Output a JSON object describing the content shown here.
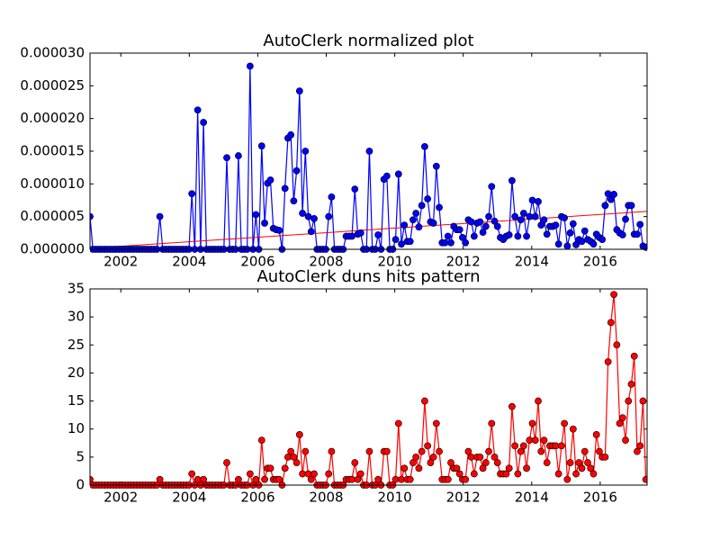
{
  "chart_data": [
    {
      "type": "line",
      "title": "AutoClerk normalized plot",
      "x": [
        2001.1,
        2001.185,
        2001.27,
        2001.355,
        2001.44,
        2001.525,
        2001.61,
        2001.695,
        2001.78,
        2001.865,
        2001.95,
        2002.035,
        2002.12,
        2002.205,
        2002.29,
        2002.375,
        2002.46,
        2002.545,
        2002.63,
        2002.715,
        2002.8,
        2002.885,
        2002.97,
        2003.055,
        2003.14,
        2003.225,
        2003.31,
        2003.395,
        2003.48,
        2003.565,
        2003.65,
        2003.735,
        2003.82,
        2003.905,
        2003.99,
        2004.075,
        2004.16,
        2004.245,
        2004.33,
        2004.415,
        2004.5,
        2004.585,
        2004.67,
        2004.755,
        2004.84,
        2004.925,
        2005.01,
        2005.095,
        2005.18,
        2005.265,
        2005.35,
        2005.435,
        2005.52,
        2005.605,
        2005.69,
        2005.775,
        2005.86,
        2005.945,
        2006.03,
        2006.115,
        2006.2,
        2006.285,
        2006.37,
        2006.455,
        2006.54,
        2006.625,
        2006.71,
        2006.795,
        2006.88,
        2006.965,
        2007.05,
        2007.135,
        2007.22,
        2007.305,
        2007.39,
        2007.475,
        2007.56,
        2007.645,
        2007.73,
        2007.815,
        2007.9,
        2007.985,
        2008.07,
        2008.155,
        2008.24,
        2008.325,
        2008.41,
        2008.495,
        2008.58,
        2008.665,
        2008.75,
        2008.835,
        2008.92,
        2009.005,
        2009.09,
        2009.175,
        2009.26,
        2009.345,
        2009.43,
        2009.515,
        2009.6,
        2009.685,
        2009.77,
        2009.855,
        2009.94,
        2010.025,
        2010.11,
        2010.195,
        2010.28,
        2010.365,
        2010.45,
        2010.535,
        2010.62,
        2010.705,
        2010.79,
        2010.875,
        2010.96,
        2011.045,
        2011.13,
        2011.215,
        2011.3,
        2011.385,
        2011.47,
        2011.555,
        2011.64,
        2011.725,
        2011.81,
        2011.895,
        2011.98,
        2012.065,
        2012.15,
        2012.235,
        2012.32,
        2012.405,
        2012.49,
        2012.575,
        2012.66,
        2012.745,
        2012.83,
        2012.915,
        2013,
        2013.085,
        2013.17,
        2013.255,
        2013.34,
        2013.425,
        2013.51,
        2013.595,
        2013.68,
        2013.765,
        2013.85,
        2013.935,
        2014.02,
        2014.105,
        2014.19,
        2014.275,
        2014.36,
        2014.445,
        2014.53,
        2014.615,
        2014.7,
        2014.785,
        2014.87,
        2014.955,
        2015.04,
        2015.125,
        2015.21,
        2015.295,
        2015.38,
        2015.465,
        2015.55,
        2015.635,
        2015.72,
        2015.805,
        2015.89,
        2015.975,
        2016.06,
        2016.145,
        2016.23,
        2016.315,
        2016.4,
        2016.485,
        2016.57,
        2016.655,
        2016.74,
        2016.825,
        2016.91,
        2016.995,
        2017.08,
        2017.165,
        2017.25,
        2017.335
      ],
      "series": [
        {
          "color": "#0000ff",
          "values": [
            5e-06,
            0,
            0,
            0,
            0,
            0,
            0,
            0,
            0,
            0,
            0,
            0,
            0,
            0,
            0,
            0,
            0,
            0,
            0,
            0,
            0,
            0,
            0,
            0,
            5e-06,
            0,
            0,
            0,
            0,
            0,
            0,
            0,
            0,
            0,
            0,
            8.5e-06,
            0,
            2.13e-05,
            0,
            1.94e-05,
            0,
            0,
            0,
            0,
            0,
            0,
            0,
            1.4e-05,
            0,
            0,
            0,
            1.43e-05,
            0,
            0,
            0,
            2.8e-05,
            0,
            5.3e-06,
            0,
            1.58e-05,
            4e-06,
            1.01e-05,
            1.06e-05,
            3.2e-06,
            3e-06,
            2.9e-06,
            0,
            9.3e-06,
            1.7e-05,
            1.75e-05,
            7.4e-06,
            1.2e-05,
            2.42e-05,
            5.5e-06,
            1.5e-05,
            5e-06,
            2.7e-06,
            4.7e-06,
            0,
            0,
            0,
            0,
            5e-06,
            8e-06,
            0,
            0,
            0,
            0,
            2e-06,
            2e-06,
            2e-06,
            9.2e-06,
            2.3e-06,
            2.5e-06,
            0,
            0,
            1.5e-05,
            0,
            0,
            2.2e-06,
            0,
            1.07e-05,
            1.12e-05,
            0,
            0,
            1.5e-06,
            1.15e-05,
            8e-07,
            3.7e-06,
            1.2e-06,
            1.2e-06,
            4.5e-06,
            5.5e-06,
            3.4e-06,
            6.7e-06,
            1.57e-05,
            7.7e-06,
            4.2e-06,
            4e-06,
            1.27e-05,
            6.4e-06,
            1e-06,
            1e-06,
            2e-06,
            1e-06,
            3.5e-06,
            3e-06,
            3e-06,
            1.8e-06,
            1e-06,
            4.5e-06,
            4.2e-06,
            2e-06,
            4e-06,
            4.2e-06,
            2.6e-06,
            3.5e-06,
            5e-06,
            9.6e-06,
            4.3e-06,
            3.5e-06,
            1.8e-06,
            1.5e-06,
            2e-06,
            2.2e-06,
            1.05e-05,
            5e-06,
            2e-06,
            4.5e-06,
            5.5e-06,
            2e-06,
            5e-06,
            7.5e-06,
            5e-06,
            7.3e-06,
            3.7e-06,
            4.5e-06,
            2.3e-06,
            3.5e-06,
            3.5e-06,
            3.7e-06,
            8e-07,
            5e-06,
            4.8e-06,
            5e-07,
            2.5e-06,
            3.9e-06,
            7e-07,
            1.5e-06,
            1.2e-06,
            2.8e-06,
            1.5e-06,
            1.2e-06,
            8e-07,
            2.3e-06,
            1.8e-06,
            1.5e-06,
            6.7e-06,
            8.5e-06,
            7.6e-06,
            8.4e-06,
            3e-06,
            2.5e-06,
            2.2e-06,
            4.6e-06,
            6.7e-06,
            6.7e-06,
            2.3e-06,
            2.3e-06,
            3.8e-06,
            5e-07,
            3e-07
          ]
        }
      ],
      "fit": {
        "color": "#ff0000",
        "x": [
          2001.1,
          2017.37
        ],
        "values": [
          1.5e-07,
          5.8e-06
        ]
      },
      "xlim": [
        2001.1,
        2017.37
      ],
      "ylim": [
        0,
        3e-05
      ],
      "xticks": [
        2002,
        2004,
        2006,
        2008,
        2010,
        2012,
        2014,
        2016
      ],
      "yticks": [
        {
          "value": 0,
          "label": "0.000000"
        },
        {
          "value": 5e-06,
          "label": "0.000005"
        },
        {
          "value": 1e-05,
          "label": "0.000010"
        },
        {
          "value": 1.5e-05,
          "label": "0.000015"
        },
        {
          "value": 2e-05,
          "label": "0.000020"
        },
        {
          "value": 2.5e-05,
          "label": "0.000025"
        },
        {
          "value": 3e-05,
          "label": "0.000030"
        }
      ]
    },
    {
      "type": "line",
      "title": "AutoClerk duns hits pattern",
      "x": [
        2001.1,
        2001.185,
        2001.27,
        2001.355,
        2001.44,
        2001.525,
        2001.61,
        2001.695,
        2001.78,
        2001.865,
        2001.95,
        2002.035,
        2002.12,
        2002.205,
        2002.29,
        2002.375,
        2002.46,
        2002.545,
        2002.63,
        2002.715,
        2002.8,
        2002.885,
        2002.97,
        2003.055,
        2003.14,
        2003.225,
        2003.31,
        2003.395,
        2003.48,
        2003.565,
        2003.65,
        2003.735,
        2003.82,
        2003.905,
        2003.99,
        2004.075,
        2004.16,
        2004.245,
        2004.33,
        2004.415,
        2004.5,
        2004.585,
        2004.67,
        2004.755,
        2004.84,
        2004.925,
        2005.01,
        2005.095,
        2005.18,
        2005.265,
        2005.35,
        2005.435,
        2005.52,
        2005.605,
        2005.69,
        2005.775,
        2005.86,
        2005.945,
        2006.03,
        2006.115,
        2006.2,
        2006.285,
        2006.37,
        2006.455,
        2006.54,
        2006.625,
        2006.71,
        2006.795,
        2006.88,
        2006.965,
        2007.05,
        2007.135,
        2007.22,
        2007.305,
        2007.39,
        2007.475,
        2007.56,
        2007.645,
        2007.73,
        2007.815,
        2007.9,
        2007.985,
        2008.07,
        2008.155,
        2008.24,
        2008.325,
        2008.41,
        2008.495,
        2008.58,
        2008.665,
        2008.75,
        2008.835,
        2008.92,
        2009.005,
        2009.09,
        2009.175,
        2009.26,
        2009.345,
        2009.43,
        2009.515,
        2009.6,
        2009.685,
        2009.77,
        2009.855,
        2009.94,
        2010.025,
        2010.11,
        2010.195,
        2010.28,
        2010.365,
        2010.45,
        2010.535,
        2010.62,
        2010.705,
        2010.79,
        2010.875,
        2010.96,
        2011.045,
        2011.13,
        2011.215,
        2011.3,
        2011.385,
        2011.47,
        2011.555,
        2011.64,
        2011.725,
        2011.81,
        2011.895,
        2011.98,
        2012.065,
        2012.15,
        2012.235,
        2012.32,
        2012.405,
        2012.49,
        2012.575,
        2012.66,
        2012.745,
        2012.83,
        2012.915,
        2013,
        2013.085,
        2013.17,
        2013.255,
        2013.34,
        2013.425,
        2013.51,
        2013.595,
        2013.68,
        2013.765,
        2013.85,
        2013.935,
        2014.02,
        2014.105,
        2014.19,
        2014.275,
        2014.36,
        2014.445,
        2014.53,
        2014.615,
        2014.7,
        2014.785,
        2014.87,
        2014.955,
        2015.04,
        2015.125,
        2015.21,
        2015.295,
        2015.38,
        2015.465,
        2015.55,
        2015.635,
        2015.72,
        2015.805,
        2015.89,
        2015.975,
        2016.06,
        2016.145,
        2016.23,
        2016.315,
        2016.4,
        2016.485,
        2016.57,
        2016.655,
        2016.74,
        2016.825,
        2016.91,
        2016.995,
        2017.08,
        2017.165,
        2017.25,
        2017.335
      ],
      "series": [
        {
          "color": "#ff0000",
          "values": [
            1,
            0,
            0,
            0,
            0,
            0,
            0,
            0,
            0,
            0,
            0,
            0,
            0,
            0,
            0,
            0,
            0,
            0,
            0,
            0,
            0,
            0,
            0,
            0,
            1,
            0,
            0,
            0,
            0,
            0,
            0,
            0,
            0,
            0,
            0,
            2,
            0,
            1,
            0,
            1,
            0,
            0,
            0,
            0,
            0,
            0,
            0,
            4,
            0,
            0,
            0,
            1,
            0,
            0,
            0,
            2,
            0,
            1,
            0,
            8,
            1,
            3,
            3,
            1,
            1,
            1,
            0,
            3,
            5,
            6,
            5,
            4,
            9,
            2,
            6,
            2,
            1,
            2,
            0,
            0,
            0,
            0,
            2,
            6,
            0,
            0,
            0,
            0,
            1,
            1,
            1,
            4,
            1,
            2,
            0,
            0,
            6,
            0,
            0,
            1,
            0,
            6,
            6,
            0,
            0,
            1,
            11,
            1,
            3,
            1,
            1,
            4,
            5,
            3,
            6,
            15,
            7,
            4,
            5,
            11,
            6,
            1,
            1,
            1,
            4,
            3,
            3,
            2,
            1,
            1,
            6,
            5,
            2,
            5,
            5,
            3,
            4,
            6,
            11,
            5,
            4,
            2,
            2,
            2,
            3,
            14,
            7,
            2,
            6,
            7,
            3,
            8,
            11,
            8,
            15,
            6,
            8,
            4,
            7,
            7,
            7,
            2,
            7,
            11,
            1,
            4,
            10,
            2,
            4,
            3,
            6,
            4,
            3,
            2,
            9,
            6,
            5,
            5,
            22,
            29,
            34,
            25,
            11,
            12,
            8,
            15,
            18,
            23,
            6,
            7,
            15,
            1
          ]
        }
      ],
      "xlim": [
        2001.1,
        2017.37
      ],
      "ylim": [
        0,
        35
      ],
      "xticks": [
        2002,
        2004,
        2006,
        2008,
        2010,
        2012,
        2014,
        2016
      ],
      "yticks": [
        0,
        5,
        10,
        15,
        20,
        25,
        30,
        35
      ]
    }
  ]
}
